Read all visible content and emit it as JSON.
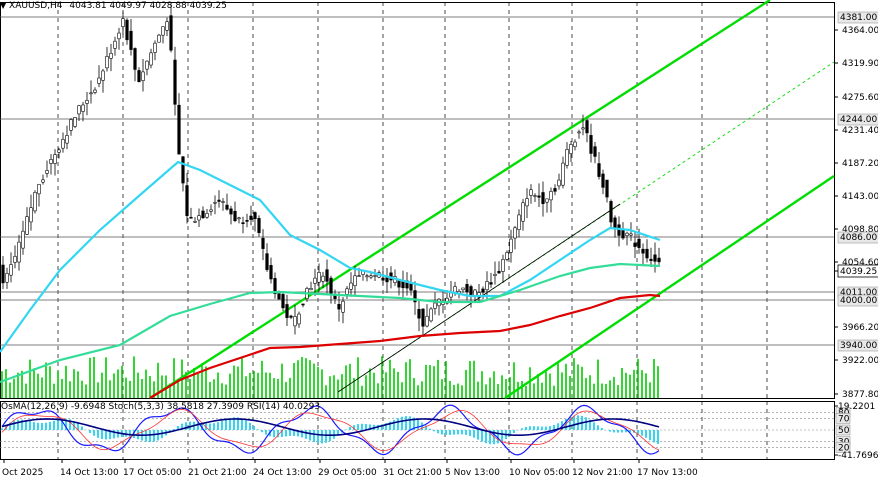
{
  "header": {
    "symbol": "XAUUSD,H4",
    "ohlc": "4043.81 4049.97 4028.88 4039.25"
  },
  "price_axis": {
    "ticks": [
      "4364.00",
      "4319.90",
      "4275.60",
      "4231.40",
      "4187.20",
      "4143.00",
      "4098.80",
      "4054.60",
      "3966.20",
      "3922.00",
      "3877.80"
    ],
    "boxed_levels": [
      "4381.00",
      "4244.00",
      "4086.00",
      "4011.00",
      "4000.00",
      "3940.00"
    ],
    "current_price": "4039.25"
  },
  "indicator": {
    "label": "OsMA(12,26,9) -9.6948  Stoch(5,3,3) 38.5818 27.3909  RSI(14) 40.0293",
    "axis_top": "19.2201",
    "axis_bottom": "-41.7696",
    "levels": [
      "80",
      "70",
      "50",
      "30",
      "20"
    ]
  },
  "time_axis": {
    "labels": [
      "Oct 2025",
      "14 Oct 13:00",
      "17 Oct 05:00",
      "21 Oct 21:00",
      "24 Oct 13:00",
      "29 Oct 05:00",
      "31 Oct 21:00",
      "5 Nov 13:00",
      "10 Nov 05:00",
      "12 Nov 21:00",
      "17 Nov 13:00"
    ]
  },
  "colors": {
    "candle": "#000000",
    "volume": "#00cc00",
    "channel": "#00dd00",
    "ma_fast": "#33d6f2",
    "ma_mid": "#33dd99",
    "ma_slow": "#dd0000",
    "grid": "#000000"
  }
}
